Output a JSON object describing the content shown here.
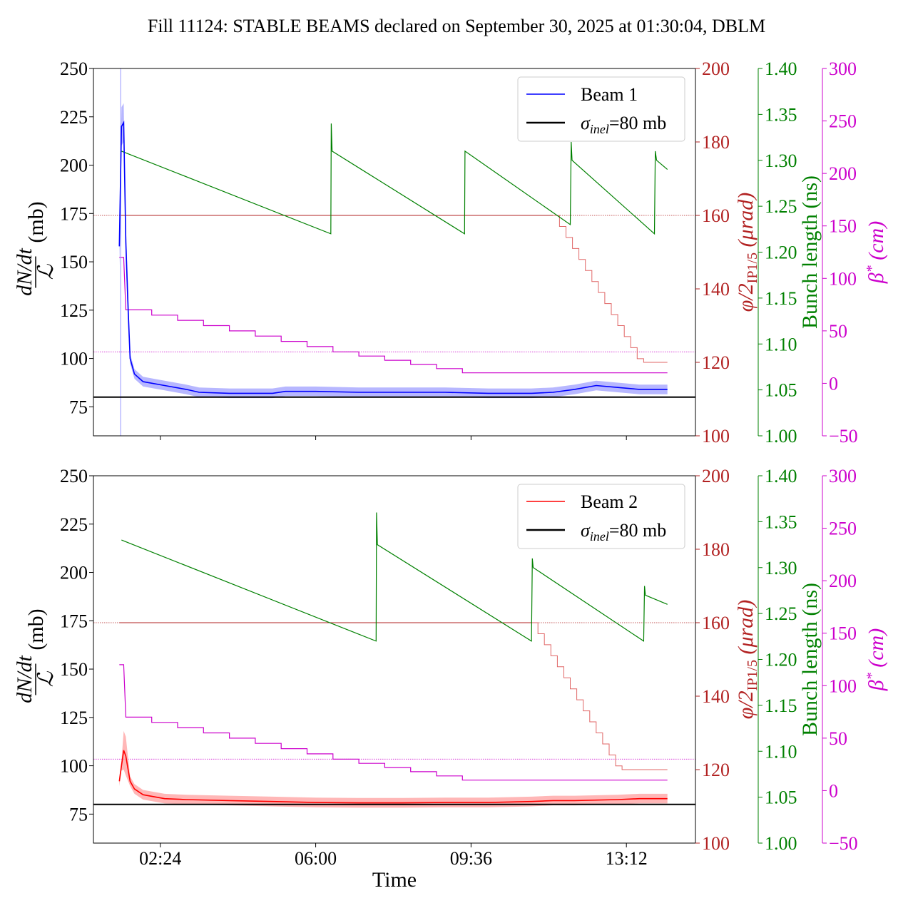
{
  "title": "Fill 11124: STABLE BEAMS declared on September 30, 2025 at 01:30:04, DBLM",
  "colors": {
    "beam1": "#0000ff",
    "beam1_band": "#9999ff",
    "beam2": "#ff0000",
    "beam2_band": "#ff9999",
    "phi": "#b22222",
    "phi_line": "#e06666",
    "bunch": "#008000",
    "beta": "#cc00cc",
    "inel": "#000000"
  },
  "chart_data": {
    "type": "line",
    "x_label": "Time",
    "x_ticks": [
      "02:24",
      "06:00",
      "09:36",
      "13:12"
    ],
    "x_tick_hours": [
      2.4,
      6.0,
      9.6,
      13.2
    ],
    "x_range_hours": [
      0.85,
      14.8
    ],
    "axes": {
      "left": {
        "label_num": "dN/dt",
        "label_den": "ℒ",
        "label_unit": "(mb)",
        "ylim": [
          60,
          250
        ],
        "ticks": [
          75,
          100,
          125,
          150,
          175,
          200,
          225,
          250
        ]
      },
      "phi": {
        "label": "φ/2",
        "label_sub": "IP1/5",
        "label_unit": "(μrad)",
        "ylim": [
          100,
          200
        ],
        "ticks": [
          100,
          120,
          140,
          160,
          180,
          200
        ]
      },
      "bunch": {
        "label": "Bunch length (ns)",
        "ylim": [
          1.0,
          1.4
        ],
        "ticks": [
          "1.00",
          "1.05",
          "1.10",
          "1.15",
          "1.20",
          "1.25",
          "1.30",
          "1.35",
          "1.40"
        ]
      },
      "beta": {
        "label": "β",
        "label_sup": "*",
        "label_unit": "(cm)",
        "ylim": [
          -50,
          300
        ],
        "ticks": [
          "−50",
          "0",
          "50",
          "100",
          "150",
          "200",
          "250",
          "300"
        ]
      }
    },
    "panels": [
      {
        "name": "beam1",
        "legend": [
          "Beam 1",
          "σinel=80 mb"
        ],
        "legend_position": "upper right",
        "sigma_inel": 80,
        "xsec": {
          "points": [
            [
              1.45,
              158
            ],
            [
              1.5,
              220
            ],
            [
              1.55,
              222
            ],
            [
              1.6,
              160
            ],
            [
              1.65,
              128
            ],
            [
              1.7,
              100
            ],
            [
              1.8,
              92
            ],
            [
              2.0,
              88
            ],
            [
              2.5,
              86
            ],
            [
              3.0,
              84
            ],
            [
              3.3,
              82.5
            ],
            [
              4.0,
              82
            ],
            [
              5.0,
              82
            ],
            [
              5.3,
              83
            ],
            [
              6.0,
              83
            ],
            [
              7.0,
              82.5
            ],
            [
              8.0,
              82.5
            ],
            [
              9.0,
              82.5
            ],
            [
              10.0,
              82
            ],
            [
              11.0,
              82
            ],
            [
              11.5,
              82.5
            ],
            [
              12.0,
              84
            ],
            [
              12.5,
              86
            ],
            [
              13.0,
              85
            ],
            [
              13.5,
              84
            ],
            [
              14.15,
              84
            ]
          ],
          "band_halfwidth": 2.5
        },
        "phi": {
          "flat_value": 160,
          "flat_end": 11.5,
          "steps": [
            [
              11.5,
              160
            ],
            [
              11.65,
              157
            ],
            [
              11.8,
              154
            ],
            [
              11.95,
              151
            ],
            [
              12.1,
              148
            ],
            [
              12.25,
              145
            ],
            [
              12.4,
              142
            ],
            [
              12.55,
              139
            ],
            [
              12.7,
              136
            ],
            [
              12.85,
              133
            ],
            [
              13.0,
              130
            ],
            [
              13.15,
              127
            ],
            [
              13.3,
              124
            ],
            [
              13.45,
              121
            ],
            [
              13.6,
              120
            ],
            [
              14.15,
              120
            ]
          ]
        },
        "bunch": {
          "points": [
            [
              1.5,
              1.31
            ],
            [
              6.35,
              1.22
            ],
            [
              6.36,
              1.34
            ],
            [
              6.38,
              1.31
            ],
            [
              9.45,
              1.22
            ],
            [
              9.46,
              1.31
            ],
            [
              11.9,
              1.23
            ],
            [
              11.92,
              1.32
            ],
            [
              11.94,
              1.3
            ],
            [
              13.85,
              1.22
            ],
            [
              13.87,
              1.31
            ],
            [
              13.9,
              1.3
            ],
            [
              14.15,
              1.29
            ]
          ]
        },
        "beta": {
          "points": [
            [
              1.45,
              120
            ],
            [
              1.55,
              120
            ],
            [
              1.6,
              70
            ],
            [
              2.2,
              70
            ],
            [
              2.2,
              65
            ],
            [
              2.8,
              65
            ],
            [
              2.8,
              60
            ],
            [
              3.4,
              60
            ],
            [
              3.4,
              55
            ],
            [
              4.0,
              55
            ],
            [
              4.0,
              50
            ],
            [
              4.6,
              50
            ],
            [
              4.6,
              45
            ],
            [
              5.2,
              45
            ],
            [
              5.2,
              40
            ],
            [
              5.8,
              40
            ],
            [
              5.8,
              35
            ],
            [
              6.4,
              35
            ],
            [
              6.4,
              30
            ],
            [
              7.0,
              30
            ],
            [
              7.0,
              26
            ],
            [
              7.6,
              26
            ],
            [
              7.6,
              22
            ],
            [
              8.2,
              22
            ],
            [
              8.2,
              18
            ],
            [
              8.8,
              18
            ],
            [
              8.8,
              14
            ],
            [
              9.4,
              14
            ],
            [
              9.4,
              10
            ],
            [
              14.15,
              10
            ]
          ]
        },
        "ref_lines": {
          "phi": 160,
          "beta": 30
        }
      },
      {
        "name": "beam2",
        "legend": [
          "Beam 2",
          "σinel=80 mb"
        ],
        "legend_position": "upper right",
        "sigma_inel": 80,
        "xsec": {
          "points": [
            [
              1.45,
              92
            ],
            [
              1.5,
              100
            ],
            [
              1.55,
              108
            ],
            [
              1.6,
              105
            ],
            [
              1.7,
              92
            ],
            [
              1.8,
              88
            ],
            [
              2.0,
              85
            ],
            [
              2.5,
              83
            ],
            [
              3.0,
              82.5
            ],
            [
              4.0,
              82
            ],
            [
              5.0,
              81.5
            ],
            [
              6.0,
              81
            ],
            [
              7.0,
              80.8
            ],
            [
              8.0,
              80.8
            ],
            [
              9.0,
              81
            ],
            [
              10.0,
              81
            ],
            [
              11.0,
              81.5
            ],
            [
              11.5,
              82
            ],
            [
              12.0,
              82
            ],
            [
              13.0,
              82.5
            ],
            [
              13.5,
              83
            ],
            [
              14.15,
              83
            ]
          ],
          "band_halfwidth": 2.5
        },
        "phi": {
          "flat_value": 160,
          "flat_end": 11.0,
          "steps": [
            [
              11.0,
              160
            ],
            [
              11.15,
              157
            ],
            [
              11.3,
              154
            ],
            [
              11.45,
              151
            ],
            [
              11.6,
              148
            ],
            [
              11.75,
              145
            ],
            [
              11.9,
              142
            ],
            [
              12.05,
              139
            ],
            [
              12.2,
              136
            ],
            [
              12.35,
              133
            ],
            [
              12.5,
              130
            ],
            [
              12.65,
              127
            ],
            [
              12.8,
              124
            ],
            [
              12.95,
              121
            ],
            [
              13.1,
              120
            ],
            [
              14.15,
              120
            ]
          ]
        },
        "bunch": {
          "points": [
            [
              1.5,
              1.33
            ],
            [
              7.4,
              1.22
            ],
            [
              7.41,
              1.36
            ],
            [
              7.43,
              1.325
            ],
            [
              11.0,
              1.22
            ],
            [
              11.02,
              1.31
            ],
            [
              11.04,
              1.3
            ],
            [
              13.6,
              1.22
            ],
            [
              13.62,
              1.28
            ],
            [
              13.64,
              1.27
            ],
            [
              14.15,
              1.26
            ]
          ]
        },
        "beta": {
          "points": [
            [
              1.45,
              120
            ],
            [
              1.55,
              120
            ],
            [
              1.6,
              70
            ],
            [
              2.2,
              70
            ],
            [
              2.2,
              65
            ],
            [
              2.8,
              65
            ],
            [
              2.8,
              60
            ],
            [
              3.4,
              60
            ],
            [
              3.4,
              55
            ],
            [
              4.0,
              55
            ],
            [
              4.0,
              50
            ],
            [
              4.6,
              50
            ],
            [
              4.6,
              45
            ],
            [
              5.2,
              45
            ],
            [
              5.2,
              40
            ],
            [
              5.8,
              40
            ],
            [
              5.8,
              35
            ],
            [
              6.4,
              35
            ],
            [
              6.4,
              30
            ],
            [
              7.0,
              30
            ],
            [
              7.0,
              26
            ],
            [
              7.6,
              26
            ],
            [
              7.6,
              22
            ],
            [
              8.2,
              22
            ],
            [
              8.2,
              18
            ],
            [
              8.8,
              18
            ],
            [
              8.8,
              14
            ],
            [
              9.4,
              14
            ],
            [
              9.4,
              10
            ],
            [
              14.15,
              10
            ]
          ]
        },
        "ref_lines": {
          "phi": 160,
          "beta": 30
        }
      }
    ]
  }
}
